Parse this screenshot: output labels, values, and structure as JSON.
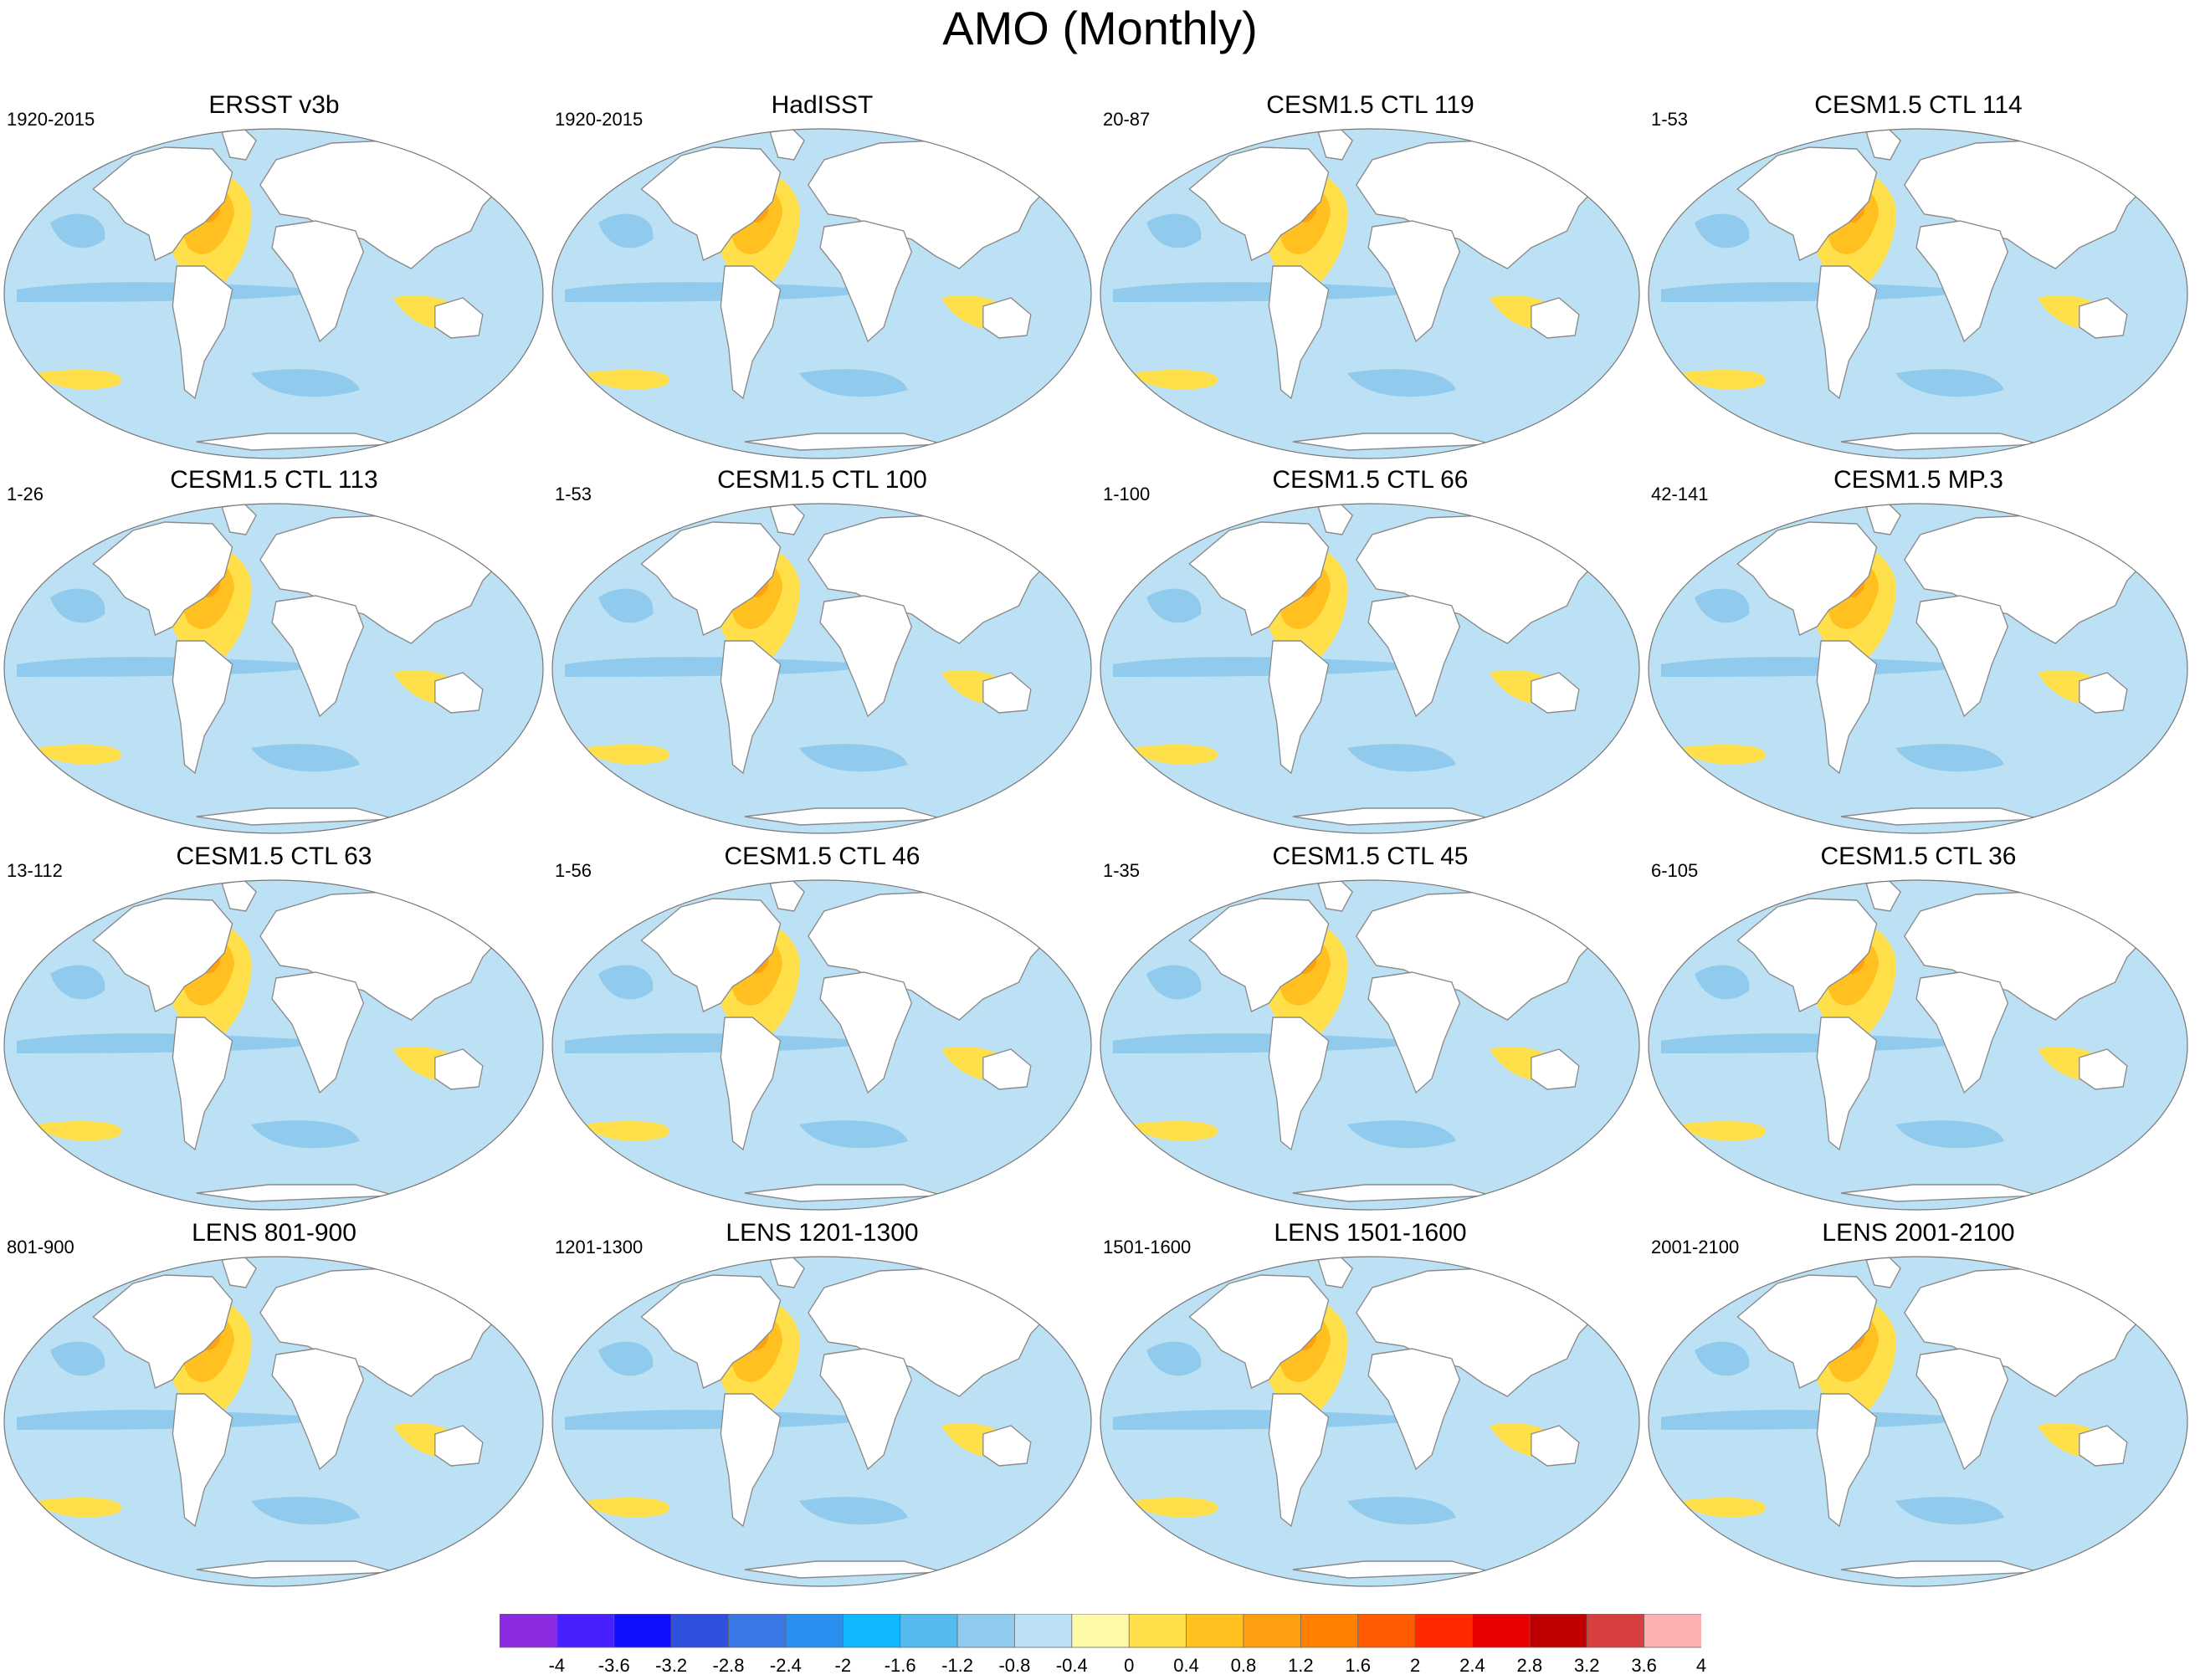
{
  "title": "AMO (Monthly)",
  "panels": [
    {
      "title": "ERSST v3b",
      "period": "1920-2015"
    },
    {
      "title": "HadISST",
      "period": "1920-2015"
    },
    {
      "title": "CESM1.5 CTL 119",
      "period": "20-87"
    },
    {
      "title": "CESM1.5 CTL 114",
      "period": "1-53"
    },
    {
      "title": "CESM1.5 CTL 113",
      "period": "1-26"
    },
    {
      "title": "CESM1.5 CTL 100",
      "period": "1-53"
    },
    {
      "title": "CESM1.5 CTL 66",
      "period": "1-100"
    },
    {
      "title": "CESM1.5 MP.3",
      "period": "42-141"
    },
    {
      "title": "CESM1.5 CTL 63",
      "period": "13-112"
    },
    {
      "title": "CESM1.5 CTL 46",
      "period": "1-56"
    },
    {
      "title": "CESM1.5 CTL 45",
      "period": "1-35"
    },
    {
      "title": "CESM1.5 CTL 36",
      "period": "6-105"
    },
    {
      "title": "LENS 801-900",
      "period": "801-900"
    },
    {
      "title": "LENS 1201-1300",
      "period": "1201-1300"
    },
    {
      "title": "LENS 1501-1600",
      "period": "1501-1600"
    },
    {
      "title": "LENS 2001-2100",
      "period": "2001-2100"
    }
  ],
  "colorbar": {
    "labels": [
      "-4",
      "-3.6",
      "-3.2",
      "-2.8",
      "-2.4",
      "-2",
      "-1.6",
      "-1.2",
      "-0.8",
      "-0.4",
      "0",
      "0.4",
      "0.8",
      "1.2",
      "1.6",
      "2",
      "2.4",
      "2.8",
      "3.2",
      "3.6",
      "4"
    ],
    "colors": [
      "#8a2be2",
      "#4a1fff",
      "#1010ff",
      "#3050e0",
      "#3a78e6",
      "#2a90f0",
      "#10b8ff",
      "#55bbee",
      "#90cbee",
      "#bce0f4",
      "#fffaa8",
      "#ffe04a",
      "#ffc020",
      "#ffa010",
      "#ff8000",
      "#ff5a00",
      "#ff2a00",
      "#e80000",
      "#c00000",
      "#d84040",
      "#ffb0b0"
    ]
  },
  "colors": {
    "land": "#ffffff",
    "ocean_neg": "#bce0f4",
    "ocean_pos": "#fffaa8",
    "coast": "#8a8a8a"
  }
}
